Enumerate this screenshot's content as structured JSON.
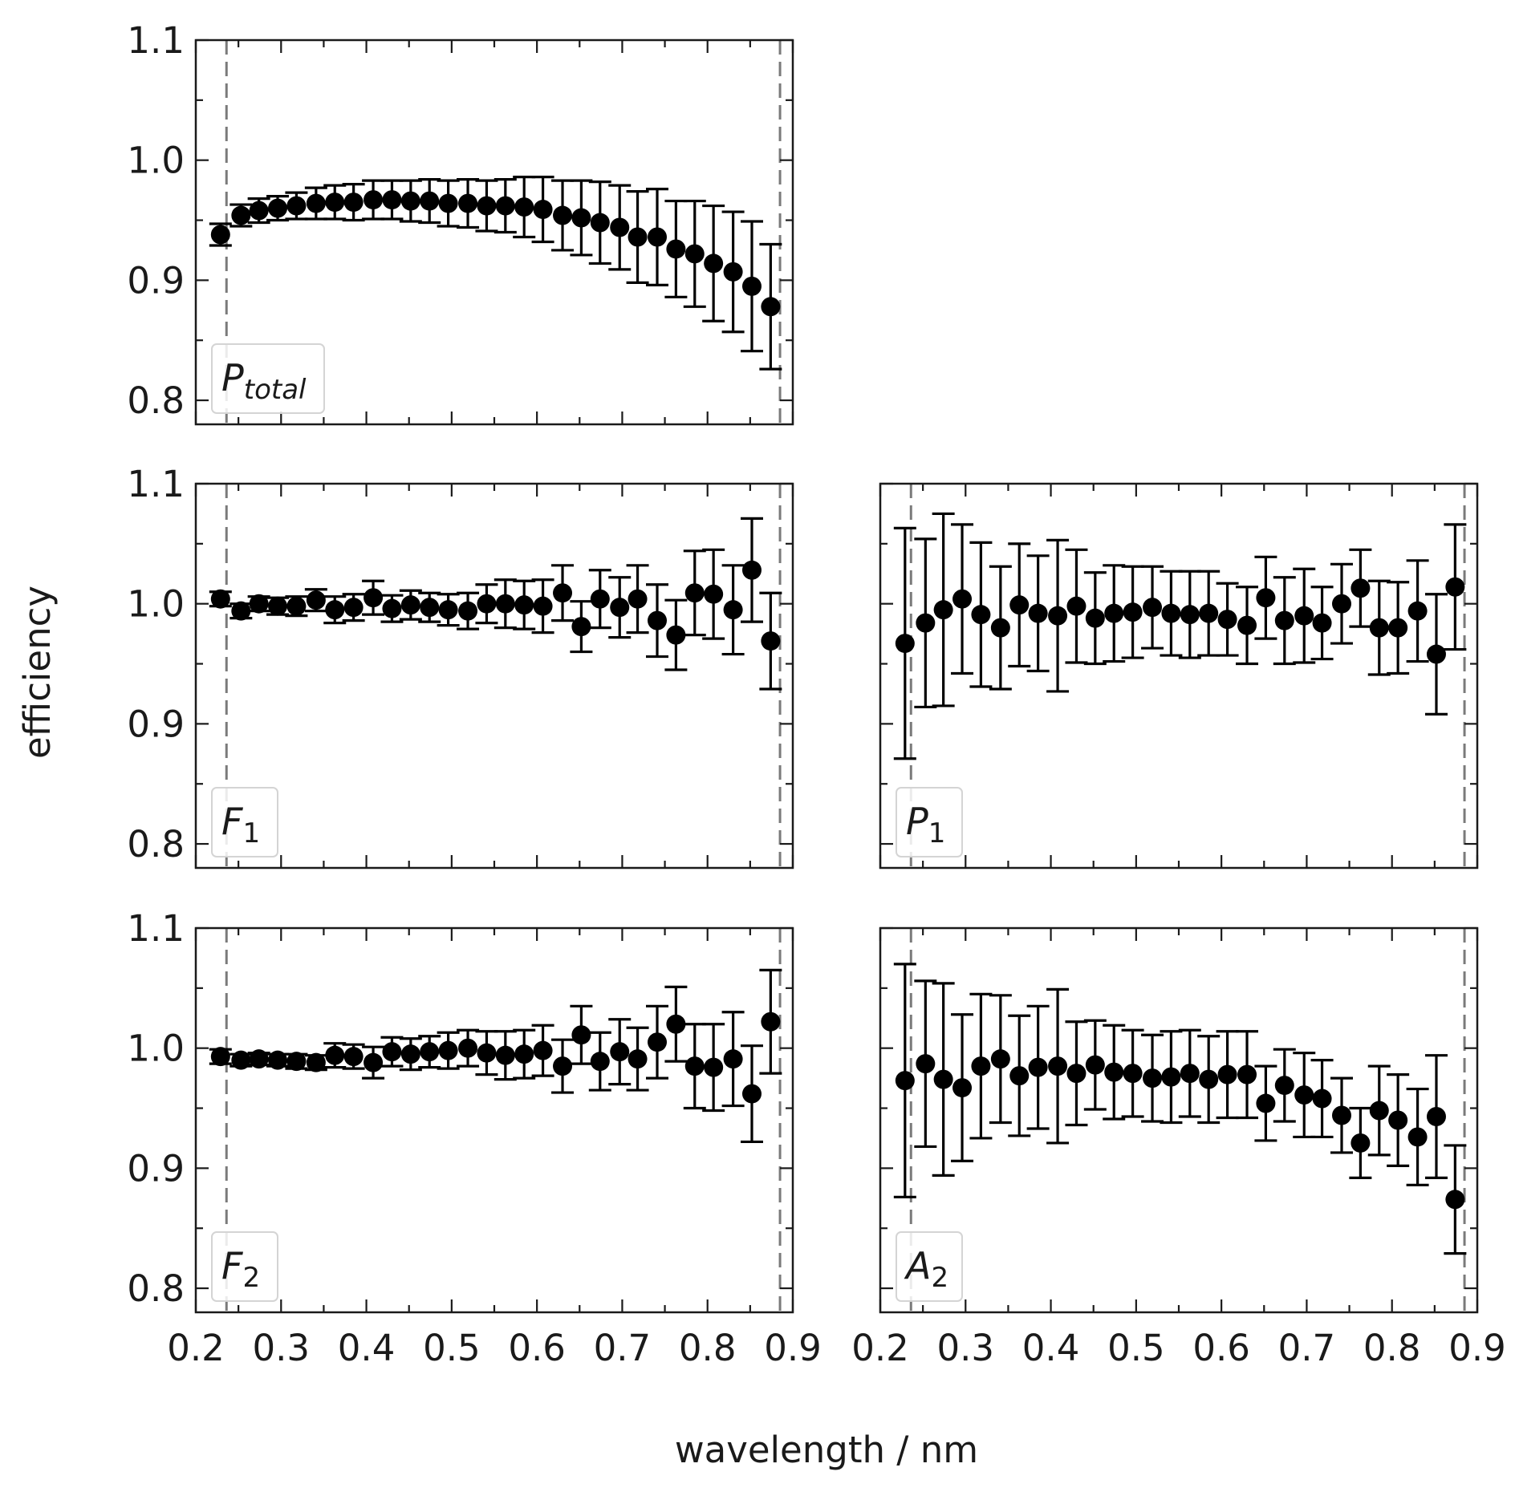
{
  "figure": {
    "ylabel": "efficiency",
    "xlabel": "wavelength / nm"
  },
  "chart_data": [
    {
      "id": "p_total",
      "type": "scatter",
      "label": {
        "main": "P",
        "sub": "total",
        "sub_italic": true
      },
      "xlim": [
        0.2,
        0.9
      ],
      "ylim": [
        0.78,
        1.1
      ],
      "xticks": [
        "0.2",
        "0.3",
        "0.4",
        "0.5",
        "0.6",
        "0.7",
        "0.8",
        "0.9"
      ],
      "yticks": [
        "0.8",
        "0.9",
        "1.0",
        "1.1"
      ],
      "show_x_ticklabels": false,
      "show_y_ticklabels": true,
      "vlines": [
        0.236,
        0.885
      ],
      "x": [
        0.229,
        0.253,
        0.274,
        0.296,
        0.318,
        0.341,
        0.363,
        0.385,
        0.408,
        0.43,
        0.452,
        0.474,
        0.496,
        0.519,
        0.541,
        0.563,
        0.585,
        0.607,
        0.63,
        0.652,
        0.674,
        0.697,
        0.718,
        0.741,
        0.763,
        0.785,
        0.807,
        0.83,
        0.852,
        0.874
      ],
      "y": [
        0.938,
        0.954,
        0.958,
        0.96,
        0.962,
        0.964,
        0.965,
        0.965,
        0.967,
        0.967,
        0.966,
        0.966,
        0.964,
        0.964,
        0.962,
        0.962,
        0.961,
        0.959,
        0.954,
        0.952,
        0.948,
        0.944,
        0.936,
        0.936,
        0.926,
        0.922,
        0.914,
        0.907,
        0.895,
        0.878
      ],
      "yerr": [
        0.009,
        0.009,
        0.01,
        0.01,
        0.011,
        0.013,
        0.014,
        0.015,
        0.016,
        0.016,
        0.017,
        0.018,
        0.019,
        0.02,
        0.021,
        0.022,
        0.025,
        0.027,
        0.029,
        0.031,
        0.034,
        0.035,
        0.038,
        0.04,
        0.04,
        0.044,
        0.048,
        0.05,
        0.054,
        0.052
      ]
    },
    {
      "id": "f1",
      "type": "scatter",
      "label": {
        "main": "F",
        "sub": "1",
        "sub_italic": false
      },
      "xlim": [
        0.2,
        0.9
      ],
      "ylim": [
        0.78,
        1.1
      ],
      "xticks": [
        "0.2",
        "0.3",
        "0.4",
        "0.5",
        "0.6",
        "0.7",
        "0.8",
        "0.9"
      ],
      "yticks": [
        "0.8",
        "0.9",
        "1.0",
        "1.1"
      ],
      "show_x_ticklabels": false,
      "show_y_ticklabels": true,
      "vlines": [
        0.236,
        0.885
      ],
      "x": [
        0.229,
        0.253,
        0.274,
        0.296,
        0.318,
        0.341,
        0.363,
        0.385,
        0.408,
        0.43,
        0.452,
        0.474,
        0.496,
        0.519,
        0.541,
        0.563,
        0.585,
        0.607,
        0.63,
        0.652,
        0.674,
        0.697,
        0.718,
        0.741,
        0.763,
        0.785,
        0.807,
        0.83,
        0.852,
        0.874
      ],
      "y": [
        1.004,
        0.994,
        1.0,
        0.998,
        0.998,
        1.003,
        0.995,
        0.997,
        1.005,
        0.996,
        0.999,
        0.997,
        0.995,
        0.994,
        1.0,
        1.0,
        0.999,
        0.998,
        1.009,
        0.981,
        1.004,
        0.997,
        1.004,
        0.986,
        0.974,
        1.009,
        1.008,
        0.995,
        1.028,
        0.969
      ],
      "yerr": [
        0.006,
        0.006,
        0.006,
        0.007,
        0.008,
        0.009,
        0.011,
        0.011,
        0.014,
        0.011,
        0.012,
        0.012,
        0.013,
        0.015,
        0.016,
        0.02,
        0.02,
        0.022,
        0.023,
        0.021,
        0.024,
        0.025,
        0.028,
        0.03,
        0.029,
        0.035,
        0.037,
        0.037,
        0.043,
        0.04
      ]
    },
    {
      "id": "p1",
      "type": "scatter",
      "label": {
        "main": "P",
        "sub": "1",
        "sub_italic": false
      },
      "xlim": [
        0.2,
        0.9
      ],
      "ylim": [
        0.78,
        1.1
      ],
      "xticks": [
        "0.2",
        "0.3",
        "0.4",
        "0.5",
        "0.6",
        "0.7",
        "0.8",
        "0.9"
      ],
      "yticks": [
        "0.8",
        "0.9",
        "1.0",
        "1.1"
      ],
      "show_x_ticklabels": false,
      "show_y_ticklabels": false,
      "vlines": [
        0.236,
        0.885
      ],
      "x": [
        0.229,
        0.253,
        0.274,
        0.296,
        0.318,
        0.341,
        0.363,
        0.385,
        0.408,
        0.43,
        0.452,
        0.474,
        0.496,
        0.519,
        0.541,
        0.563,
        0.585,
        0.607,
        0.63,
        0.652,
        0.674,
        0.697,
        0.718,
        0.741,
        0.763,
        0.785,
        0.807,
        0.83,
        0.852,
        0.874
      ],
      "y": [
        0.967,
        0.984,
        0.995,
        1.004,
        0.991,
        0.98,
        0.999,
        0.992,
        0.99,
        0.998,
        0.988,
        0.992,
        0.993,
        0.997,
        0.992,
        0.991,
        0.992,
        0.987,
        0.982,
        1.005,
        0.986,
        0.99,
        0.984,
        1.0,
        1.013,
        0.98,
        0.98,
        0.994,
        0.958,
        1.014
      ],
      "yerr": [
        0.096,
        0.07,
        0.08,
        0.062,
        0.06,
        0.051,
        0.051,
        0.048,
        0.063,
        0.047,
        0.038,
        0.04,
        0.038,
        0.034,
        0.035,
        0.036,
        0.035,
        0.03,
        0.032,
        0.034,
        0.036,
        0.039,
        0.03,
        0.033,
        0.032,
        0.039,
        0.038,
        0.042,
        0.05,
        0.052
      ]
    },
    {
      "id": "f2",
      "type": "scatter",
      "label": {
        "main": "F",
        "sub": "2",
        "sub_italic": false
      },
      "xlim": [
        0.2,
        0.9
      ],
      "ylim": [
        0.78,
        1.1
      ],
      "xticks": [
        "0.2",
        "0.3",
        "0.4",
        "0.5",
        "0.6",
        "0.7",
        "0.8",
        "0.9"
      ],
      "yticks": [
        "0.8",
        "0.9",
        "1.0",
        "1.1"
      ],
      "show_x_ticklabels": true,
      "show_y_ticklabels": true,
      "vlines": [
        0.236,
        0.885
      ],
      "x": [
        0.229,
        0.253,
        0.274,
        0.296,
        0.318,
        0.341,
        0.363,
        0.385,
        0.408,
        0.43,
        0.452,
        0.474,
        0.496,
        0.519,
        0.541,
        0.563,
        0.585,
        0.607,
        0.63,
        0.652,
        0.674,
        0.697,
        0.718,
        0.741,
        0.763,
        0.785,
        0.807,
        0.83,
        0.852,
        0.874
      ],
      "y": [
        0.993,
        0.99,
        0.991,
        0.99,
        0.989,
        0.988,
        0.994,
        0.993,
        0.988,
        0.997,
        0.995,
        0.997,
        0.998,
        1.0,
        0.996,
        0.994,
        0.995,
        0.998,
        0.985,
        1.011,
        0.989,
        0.997,
        0.991,
        1.005,
        1.02,
        0.985,
        0.984,
        0.991,
        0.962,
        1.022
      ],
      "yerr": [
        0.006,
        0.005,
        0.005,
        0.005,
        0.006,
        0.006,
        0.01,
        0.01,
        0.013,
        0.012,
        0.013,
        0.013,
        0.015,
        0.015,
        0.018,
        0.02,
        0.02,
        0.021,
        0.022,
        0.024,
        0.024,
        0.027,
        0.026,
        0.03,
        0.031,
        0.035,
        0.036,
        0.039,
        0.04,
        0.043
      ]
    },
    {
      "id": "a2",
      "type": "scatter",
      "label": {
        "main": "A",
        "sub": "2",
        "sub_italic": false
      },
      "xlim": [
        0.2,
        0.9
      ],
      "ylim": [
        0.78,
        1.1
      ],
      "xticks": [
        "0.2",
        "0.3",
        "0.4",
        "0.5",
        "0.6",
        "0.7",
        "0.8",
        "0.9"
      ],
      "yticks": [
        "0.8",
        "0.9",
        "1.0",
        "1.1"
      ],
      "show_x_ticklabels": true,
      "show_y_ticklabels": false,
      "vlines": [
        0.236,
        0.885
      ],
      "x": [
        0.229,
        0.253,
        0.274,
        0.296,
        0.318,
        0.341,
        0.363,
        0.385,
        0.408,
        0.43,
        0.452,
        0.474,
        0.496,
        0.519,
        0.541,
        0.563,
        0.585,
        0.607,
        0.63,
        0.652,
        0.674,
        0.697,
        0.718,
        0.741,
        0.763,
        0.785,
        0.807,
        0.83,
        0.852,
        0.874
      ],
      "y": [
        0.973,
        0.987,
        0.974,
        0.967,
        0.985,
        0.991,
        0.977,
        0.984,
        0.985,
        0.979,
        0.986,
        0.98,
        0.979,
        0.975,
        0.976,
        0.979,
        0.974,
        0.978,
        0.978,
        0.954,
        0.969,
        0.961,
        0.958,
        0.944,
        0.921,
        0.948,
        0.94,
        0.926,
        0.943,
        0.874
      ],
      "yerr": [
        0.097,
        0.069,
        0.08,
        0.061,
        0.06,
        0.053,
        0.05,
        0.051,
        0.064,
        0.043,
        0.037,
        0.039,
        0.036,
        0.036,
        0.038,
        0.036,
        0.036,
        0.036,
        0.036,
        0.031,
        0.03,
        0.035,
        0.032,
        0.031,
        0.029,
        0.037,
        0.038,
        0.04,
        0.051,
        0.045
      ]
    }
  ]
}
